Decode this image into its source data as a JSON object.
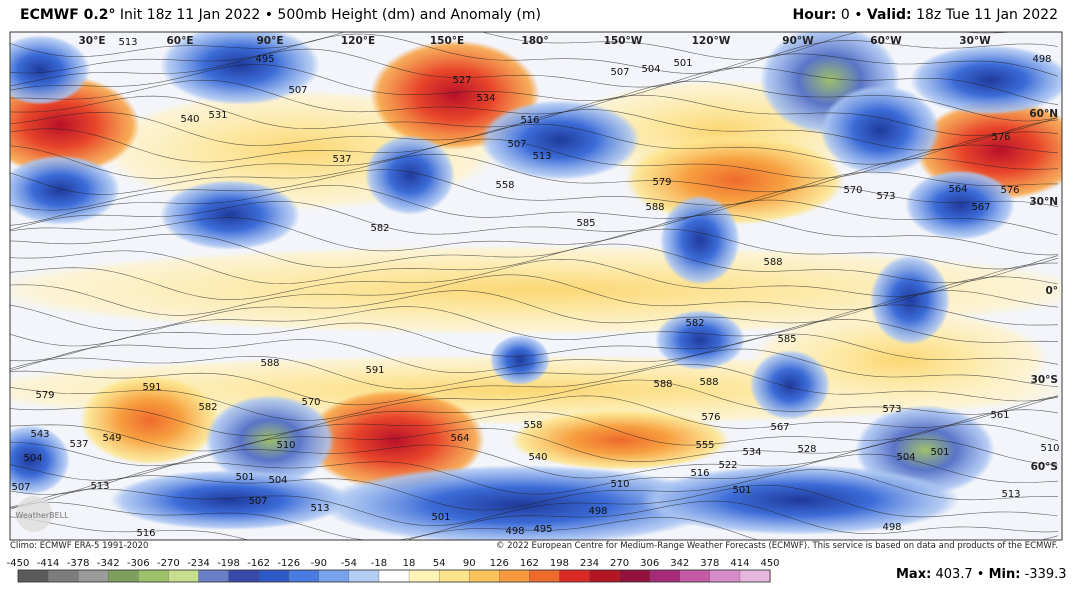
{
  "header": {
    "model": "ECMWF 0.2°",
    "title": "Init 18z 11 Jan 2022 • 500mb Height (dm) and Anomaly (m)",
    "hour_label": "Hour:",
    "hour": 0,
    "sep": "•",
    "valid_label": "Valid:",
    "valid": "18z Tue 11 Jan 2022"
  },
  "map": {
    "longitudes": [
      "30°E",
      "60°E",
      "90°E",
      "120°E",
      "150°E",
      "180°",
      "150°W",
      "120°W",
      "90°W",
      "60°W",
      "30°W"
    ],
    "latitudes": [
      "60°N",
      "30°N",
      "0°",
      "30°S",
      "60°S"
    ],
    "logo": "WeatherBELL",
    "contour_labels": [
      513,
      495,
      507,
      527,
      534,
      516,
      507,
      513,
      507,
      504,
      501,
      498,
      576,
      540,
      531,
      537,
      558,
      579,
      588,
      570,
      573,
      564,
      567,
      576,
      582,
      585,
      582,
      588,
      585,
      588,
      591,
      579,
      591,
      582,
      570,
      549,
      537,
      543,
      510,
      564,
      558,
      540,
      588,
      588,
      576,
      567,
      555,
      534,
      522,
      516,
      528,
      573,
      561,
      510,
      504,
      501,
      504,
      507,
      513,
      501,
      504,
      507,
      513,
      501,
      510,
      501,
      498,
      495,
      498,
      516,
      513,
      498
    ]
  },
  "footer": {
    "climo": "Climo: ECMWF ERA-5 1991-2020",
    "copyright": "© 2022 European Centre for Medium-Range Weather Forecasts (ECMWF). This service is based on data and products of the ECMWF.",
    "max_label": "Max:",
    "max": 403.7,
    "min_label": "Min:",
    "min": -339.3,
    "sep": "•"
  },
  "colorbar": {
    "ticks": [
      -450,
      -414,
      -378,
      -342,
      -306,
      -270,
      -234,
      -198,
      -162,
      -126,
      -90,
      -54,
      -18,
      18,
      54,
      90,
      126,
      162,
      198,
      234,
      270,
      306,
      342,
      378,
      414,
      450
    ],
    "colors": [
      "#5b5b5b",
      "#7d7d7d",
      "#9a9a9a",
      "#7f9d5c",
      "#9fc06a",
      "#c7de8f",
      "#6b7fc8",
      "#3848a8",
      "#2c58c8",
      "#4a7be0",
      "#7aa3ec",
      "#b5cdf5",
      "#ffffff",
      "#fff4b8",
      "#fde48a",
      "#fbc35c",
      "#f69a3c",
      "#ee6a2c",
      "#dc2b24",
      "#b51422",
      "#92103a",
      "#a62a78",
      "#c45aa6",
      "#d88ccb",
      "#e6b8df"
    ]
  }
}
